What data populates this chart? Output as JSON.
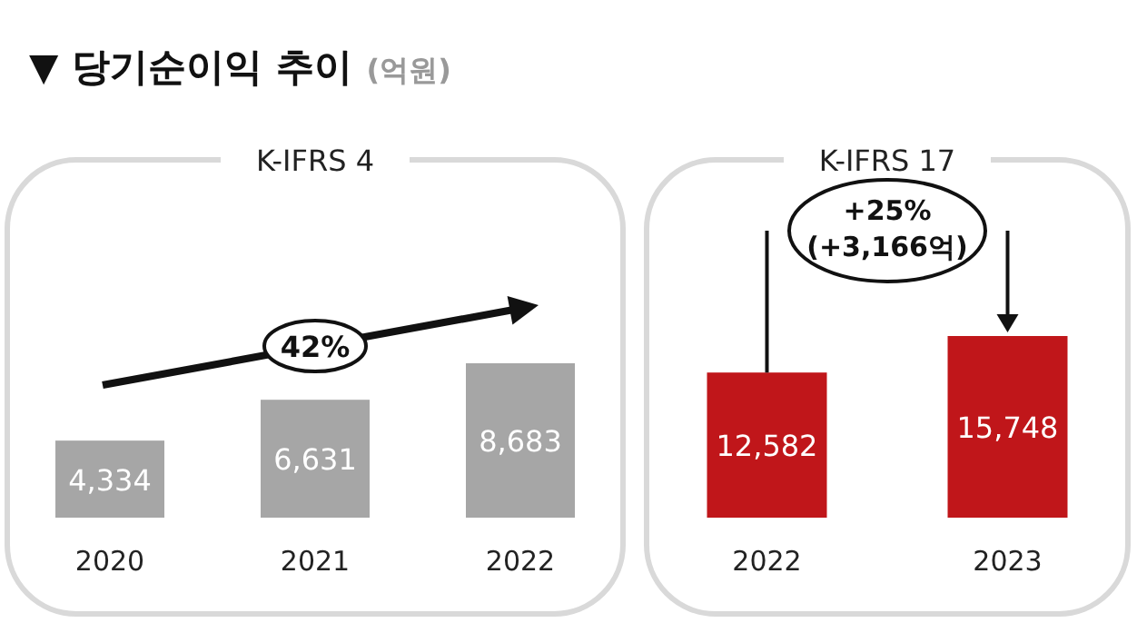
{
  "chart_data": [
    {
      "type": "bar",
      "title": "▼ 당기순이익 추이",
      "subtitle": "(억원)",
      "annotations": [
        "K-IFRS 4",
        "42%"
      ],
      "categories": [
        "2020",
        "2021",
        "2022"
      ],
      "values": [
        4334,
        6631,
        8683
      ],
      "value_labels": [
        "4,334",
        "6,631",
        "8,683"
      ],
      "color": "#a6a6a6"
    },
    {
      "type": "bar",
      "title": "K-IFRS 17",
      "annotations": [
        "+25%",
        "(+3,166억)"
      ],
      "categories": [
        "2022",
        "2023"
      ],
      "values": [
        12582,
        15748
      ],
      "value_labels": [
        "12,582",
        "15,748"
      ],
      "color": "#c0161a"
    }
  ]
}
